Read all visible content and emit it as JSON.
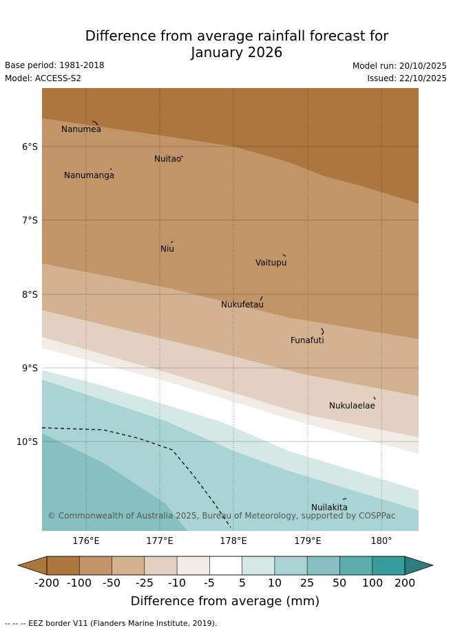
{
  "title": {
    "line1": "Difference from average rainfall forecast for",
    "line2": "January 2026"
  },
  "meta": {
    "base_period": "Base period: 1981-2018",
    "model": "Model: ACCESS-S2",
    "model_run": "Model run: 20/10/2025",
    "issued": "Issued: 22/10/2025"
  },
  "map": {
    "x_ticks": [
      "176°E",
      "177°E",
      "178°E",
      "179°E",
      "180°"
    ],
    "y_ticks": [
      "6°S",
      "7°S",
      "8°S",
      "9°S",
      "10°S"
    ],
    "islands": [
      {
        "name": "Nanumea"
      },
      {
        "name": "Nuitao"
      },
      {
        "name": "Nanumanga"
      },
      {
        "name": "Niu"
      },
      {
        "name": "Vaitupu"
      },
      {
        "name": "Nukufetau"
      },
      {
        "name": "Funafuti"
      },
      {
        "name": "Nukulaelae"
      },
      {
        "name": "Nuilakita"
      }
    ],
    "copyright": "© Commonwealth of Australia 2025, Bureau of Meteorology, supported by COSPPac"
  },
  "colorbar": {
    "title": "Difference from average (mm)",
    "labels": [
      "-200",
      "-100",
      "-50",
      "-25",
      "-10",
      "-5",
      "5",
      "10",
      "25",
      "50",
      "100",
      "200"
    ],
    "colors": [
      "#ad763e",
      "#c29569",
      "#d2b291",
      "#e2d1c1",
      "#f1ece6",
      "#ffffff",
      "#d4e8e6",
      "#aad3d4",
      "#87c0c1",
      "#5dadad",
      "#369d9c",
      "#2e7c7c"
    ]
  },
  "footnote": "-- -- -- EEZ border V11 (Flanders Marine Institute, 2019)."
}
